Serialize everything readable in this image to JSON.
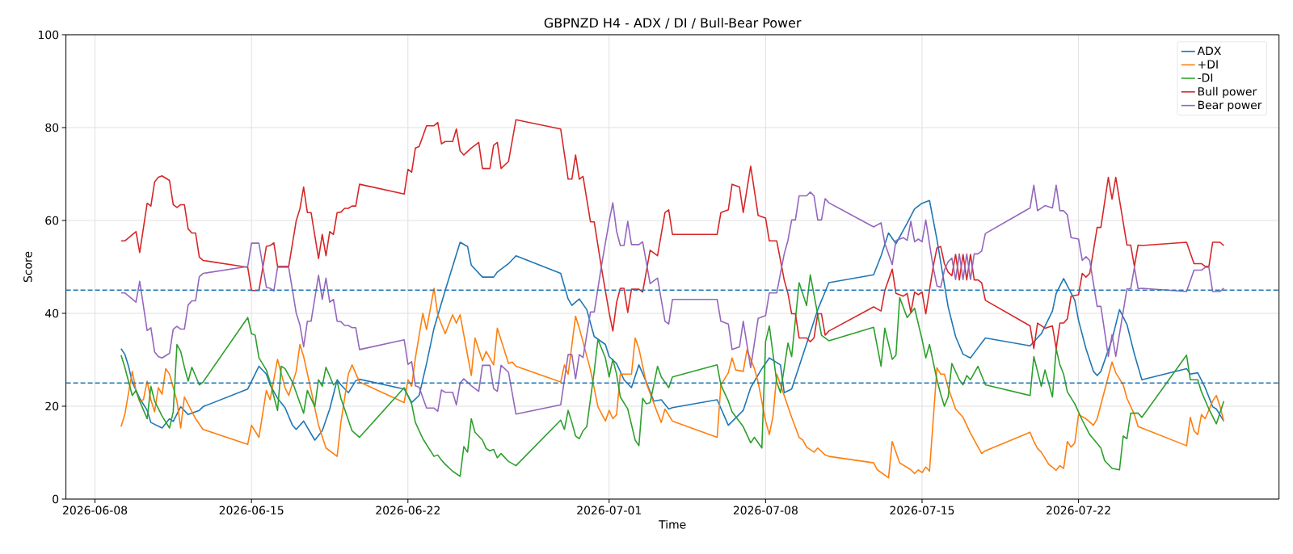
{
  "chart_data": {
    "type": "line",
    "title": "GBPNZD H4 - ADX / DI / Bull-Bear Power",
    "xlabel": "Time",
    "ylabel": "Score",
    "xlim": [
      "2026-06-06T16:48",
      "2026-07-30T23:17"
    ],
    "xticks": [
      "2026-06-08",
      "2026-06-15",
      "2026-06-22",
      "2026-07-01",
      "2026-07-08",
      "2026-07-15",
      "2026-07-22"
    ],
    "ylim": [
      0,
      100
    ],
    "yticks": [
      0,
      20,
      40,
      60,
      80,
      100
    ],
    "grid": true,
    "legend": "top right",
    "ref_lines": [
      {
        "axis": "y",
        "value": 45,
        "color": "#1f77b4",
        "line_style": "dashed"
      },
      {
        "axis": "y",
        "value": 25,
        "color": "#1f77b4",
        "line_style": "dashed"
      }
    ],
    "x": [
      "2026-06-09T04:00",
      "2026-06-09T08:00",
      "2026-06-09T20:00",
      "2026-06-10T00:00",
      "2026-06-10T08:00",
      "2026-06-10T12:00",
      "2026-06-10T16:00",
      "2026-06-10T20:00",
      "2026-06-11T00:00",
      "2026-06-11T08:00",
      "2026-06-11T12:00",
      "2026-06-11T16:00",
      "2026-06-11T20:00",
      "2026-06-12T00:00",
      "2026-06-12T04:00",
      "2026-06-12T08:00",
      "2026-06-12T12:00",
      "2026-06-12T16:00",
      "2026-06-12T20:00",
      "2026-06-14T20:00",
      "2026-06-15T00:00",
      "2026-06-15T08:00",
      "2026-06-15T16:00",
      "2026-06-15T20:00",
      "2026-06-16T00:00",
      "2026-06-16T04:00",
      "2026-06-16T16:00",
      "2026-06-17T00:00",
      "2026-06-17T04:00",
      "2026-06-17T08:00",
      "2026-06-17T12:00",
      "2026-06-17T16:00",
      "2026-06-18T00:00",
      "2026-06-18T04:00",
      "2026-06-18T08:00",
      "2026-06-18T12:00",
      "2026-06-18T16:00",
      "2026-06-18T20:00",
      "2026-06-19T00:00",
      "2026-06-19T04:00",
      "2026-06-19T08:00",
      "2026-06-19T12:00",
      "2026-06-19T16:00",
      "2026-06-19T20:00",
      "2026-06-21T20:00",
      "2026-06-22T00:00",
      "2026-06-22T04:00",
      "2026-06-22T08:00",
      "2026-06-22T12:00",
      "2026-06-22T20:00",
      "2026-06-23T04:00",
      "2026-06-23T08:00",
      "2026-06-23T12:00",
      "2026-06-23T16:00",
      "2026-06-24T00:00",
      "2026-06-24T04:00",
      "2026-06-24T08:00",
      "2026-06-24T12:00",
      "2026-06-24T20:00",
      "2026-06-25T04:00",
      "2026-06-25T08:00",
      "2026-06-25T16:00",
      "2026-06-25T20:00",
      "2026-06-26T00:00",
      "2026-06-26T04:00",
      "2026-06-26T12:00",
      "2026-06-26T20:00",
      "2026-06-28T20:00",
      "2026-06-29T04:00",
      "2026-06-29T08:00",
      "2026-06-29T12:00",
      "2026-06-29T16:00",
      "2026-06-29T20:00",
      "2026-06-30T04:00",
      "2026-06-30T08:00",
      "2026-06-30T16:00",
      "2026-07-01T00:00",
      "2026-07-01T04:00",
      "2026-07-01T08:00",
      "2026-07-01T12:00",
      "2026-07-01T16:00",
      "2026-07-01T20:00",
      "2026-07-02T00:00",
      "2026-07-02T08:00",
      "2026-07-02T12:00",
      "2026-07-02T20:00",
      "2026-07-03T04:00",
      "2026-07-03T12:00",
      "2026-07-03T16:00",
      "2026-07-03T20:00",
      "2026-07-05T20:00",
      "2026-07-06T00:00",
      "2026-07-06T08:00",
      "2026-07-06T12:00",
      "2026-07-06T20:00",
      "2026-07-07T00:00",
      "2026-07-07T08:00",
      "2026-07-07T16:00",
      "2026-07-08T00:00",
      "2026-07-08T04:00",
      "2026-07-08T12:00",
      "2026-07-08T20:00",
      "2026-07-09T00:00",
      "2026-07-09T04:00",
      "2026-07-09T08:00",
      "2026-07-09T12:00",
      "2026-07-09T20:00",
      "2026-07-10T00:00",
      "2026-07-10T04:00",
      "2026-07-10T08:00",
      "2026-07-10T12:00",
      "2026-07-10T16:00",
      "2026-07-10T20:00",
      "2026-07-12T20:00",
      "2026-07-13T04:00",
      "2026-07-13T08:00",
      "2026-07-13T16:00",
      "2026-07-13T20:00",
      "2026-07-14T04:00",
      "2026-07-14T08:00",
      "2026-07-14T12:00",
      "2026-07-14T16:00",
      "2026-07-14T20:00",
      "2026-07-15T00:00",
      "2026-07-15T04:00",
      "2026-07-15T12:00",
      "2026-07-15T16:00",
      "2026-07-15T20:00",
      "2026-07-16T00:00",
      "2026-07-16T04:00",
      "2026-07-16T08:00",
      "2026-07-16T12:00",
      "2026-07-16T16:00",
      "2026-07-16T20:00",
      "2026-07-17T00:00",
      "2026-07-17T04:00",
      "2026-07-17T08:00",
      "2026-07-17T12:00",
      "2026-07-17T16:00",
      "2026-07-17T20:00",
      "2026-07-19T20:00",
      "2026-07-20T00:00",
      "2026-07-20T04:00",
      "2026-07-20T12:00",
      "2026-07-20T20:00",
      "2026-07-21T00:00",
      "2026-07-21T04:00",
      "2026-07-21T08:00",
      "2026-07-21T12:00",
      "2026-07-21T16:00",
      "2026-07-22T00:00",
      "2026-07-22T04:00",
      "2026-07-22T08:00",
      "2026-07-22T12:00",
      "2026-07-22T20:00",
      "2026-07-23T00:00",
      "2026-07-23T08:00",
      "2026-07-23T12:00",
      "2026-07-23T16:00",
      "2026-07-24T04:00",
      "2026-07-24T08:00",
      "2026-07-24T12:00",
      "2026-07-24T16:00",
      "2026-07-24T20:00",
      "2026-07-26T20:00",
      "2026-07-27T04:00",
      "2026-07-27T12:00",
      "2026-07-27T16:00",
      "2026-07-27T20:00",
      "2026-07-28T00:00",
      "2026-07-28T08:00",
      "2026-07-28T12:00"
    ],
    "series": [
      {
        "name": "ADX",
        "color": "#1f77b4",
        "x": [
          "2026-06-09T04:00",
          "2026-06-09T08:00",
          "2026-06-09T12:00",
          "2026-06-09T16:00",
          "2026-06-10T00:00",
          "2026-06-10T08:00",
          "2026-06-10T12:00",
          "2026-06-11T00:00",
          "2026-06-11T08:00",
          "2026-06-11T12:00",
          "2026-06-11T20:00",
          "2026-06-12T04:00",
          "2026-06-12T16:00",
          "2026-06-12T20:00",
          "2026-06-14T20:00",
          "2026-06-15T08:00",
          "2026-06-15T16:00",
          "2026-06-15T20:00",
          "2026-06-16T04:00",
          "2026-06-16T12:00",
          "2026-06-16T20:00",
          "2026-06-17T00:00",
          "2026-06-17T08:00",
          "2026-06-17T20:00",
          "2026-06-18T04:00",
          "2026-06-18T12:00",
          "2026-06-18T20:00",
          "2026-06-19T00:00",
          "2026-06-19T08:00",
          "2026-06-19T16:00",
          "2026-06-19T20:00",
          "2026-06-21T20:00",
          "2026-06-22T04:00",
          "2026-06-22T12:00",
          "2026-06-22T20:00",
          "2026-06-23T04:00",
          "2026-06-23T16:00",
          "2026-06-24T08:00",
          "2026-06-24T16:00",
          "2026-06-24T20:00",
          "2026-06-25T08:00",
          "2026-06-25T20:00",
          "2026-06-26T00:00",
          "2026-06-26T12:00",
          "2026-06-26T20:00",
          "2026-06-28T20:00",
          "2026-06-29T04:00",
          "2026-06-29T08:00",
          "2026-06-29T16:00",
          "2026-06-30T00:00",
          "2026-06-30T08:00",
          "2026-06-30T20:00",
          "2026-07-01T00:00",
          "2026-07-01T08:00",
          "2026-07-01T16:00",
          "2026-07-02T00:00",
          "2026-07-02T08:00",
          "2026-07-02T16:00",
          "2026-07-03T00:00",
          "2026-07-03T08:00",
          "2026-07-03T16:00",
          "2026-07-03T20:00",
          "2026-07-05T20:00",
          "2026-07-06T08:00",
          "2026-07-07T00:00",
          "2026-07-07T08:00",
          "2026-07-07T20:00",
          "2026-07-08T04:00",
          "2026-07-08T16:00",
          "2026-07-08T20:00",
          "2026-07-09T04:00",
          "2026-07-09T16:00",
          "2026-07-10T08:00",
          "2026-07-10T20:00",
          "2026-07-12T20:00",
          "2026-07-13T04:00",
          "2026-07-13T12:00",
          "2026-07-13T20:00",
          "2026-07-14T08:00",
          "2026-07-14T16:00",
          "2026-07-15T00:00",
          "2026-07-15T08:00",
          "2026-07-15T16:00",
          "2026-07-16T04:00",
          "2026-07-16T12:00",
          "2026-07-16T20:00",
          "2026-07-17T04:00",
          "2026-07-17T08:00",
          "2026-07-17T20:00",
          "2026-07-19T20:00",
          "2026-07-20T08:00",
          "2026-07-20T20:00",
          "2026-07-21T00:00",
          "2026-07-21T08:00",
          "2026-07-21T20:00",
          "2026-07-22T00:00",
          "2026-07-22T08:00",
          "2026-07-22T16:00",
          "2026-07-22T20:00",
          "2026-07-23T00:00",
          "2026-07-23T12:00",
          "2026-07-23T20:00",
          "2026-07-24T04:00",
          "2026-07-24T12:00",
          "2026-07-24T20:00",
          "2026-07-26T20:00",
          "2026-07-27T00:00",
          "2026-07-27T08:00",
          "2026-07-27T16:00",
          "2026-07-28T00:00",
          "2026-07-28T04:00",
          "2026-07-28T12:00"
        ],
        "values": [
          32.4,
          31.2,
          28.6,
          25.2,
          21.7,
          19.1,
          16.5,
          15.3,
          17.3,
          16.7,
          19.9,
          18.2,
          19.1,
          19.9,
          23.7,
          28.6,
          26.9,
          24.6,
          21.7,
          19.7,
          15.9,
          15.0,
          16.8,
          12.7,
          14.7,
          19.4,
          25.7,
          24.6,
          22.9,
          25.5,
          25.8,
          23.7,
          20.8,
          22.3,
          29.2,
          36.8,
          44.9,
          55.3,
          54.4,
          50.4,
          47.8,
          47.8,
          48.9,
          50.7,
          52.4,
          48.6,
          43.1,
          41.7,
          43.1,
          40.8,
          35.0,
          33.3,
          30.7,
          29.2,
          25.7,
          24.0,
          28.9,
          25.2,
          21.1,
          21.4,
          19.4,
          19.7,
          21.4,
          15.9,
          19.1,
          24.0,
          28.1,
          30.4,
          28.9,
          22.9,
          23.7,
          31.0,
          40.8,
          46.6,
          48.3,
          52.4,
          57.3,
          55.0,
          59.4,
          62.5,
          63.7,
          64.3,
          55.9,
          41.4,
          35.0,
          31.2,
          30.4,
          31.5,
          34.7,
          33.0,
          35.6,
          40.5,
          44.3,
          47.5,
          42.8,
          38.5,
          32.4,
          27.5,
          26.6,
          27.5,
          34.4,
          40.8,
          37.6,
          31.2,
          25.7,
          28.1,
          26.9,
          27.2,
          24.0,
          19.9,
          19.4,
          16.8
        ]
      },
      {
        "name": "+DI",
        "color": "#ff7f0e",
        "x": [
          "2026-06-09T04:00",
          "2026-06-09T08:00",
          "2026-06-09T16:00",
          "2026-06-09T20:00",
          "2026-06-10T00:00",
          "2026-06-10T04:00",
          "2026-06-10T08:00",
          "2026-06-10T12:00",
          "2026-06-10T16:00",
          "2026-06-10T20:00",
          "2026-06-11T00:00",
          "2026-06-11T04:00",
          "2026-06-11T08:00",
          "2026-06-11T16:00",
          "2026-06-11T20:00",
          "2026-06-12T00:00",
          "2026-06-12T12:00",
          "2026-06-12T20:00",
          "2026-06-14T20:00",
          "2026-06-15T00:00",
          "2026-06-15T08:00",
          "2026-06-15T16:00",
          "2026-06-15T20:00",
          "2026-06-16T04:00",
          "2026-06-16T12:00",
          "2026-06-16T16:00",
          "2026-06-17T00:00",
          "2026-06-17T04:00",
          "2026-06-17T08:00",
          "2026-06-17T16:00",
          "2026-06-18T00:00",
          "2026-06-18T08:00",
          "2026-06-18T20:00",
          "2026-06-19T00:00",
          "2026-06-19T08:00",
          "2026-06-19T12:00",
          "2026-06-19T20:00",
          "2026-06-21T20:00",
          "2026-06-22T00:00",
          "2026-06-22T04:00",
          "2026-06-22T08:00",
          "2026-06-22T16:00",
          "2026-06-22T20:00",
          "2026-06-23T04:00",
          "2026-06-23T08:00",
          "2026-06-23T16:00",
          "2026-06-24T00:00",
          "2026-06-24T04:00",
          "2026-06-24T08:00",
          "2026-06-24T16:00",
          "2026-06-24T20:00",
          "2026-06-25T00:00",
          "2026-06-25T08:00",
          "2026-06-25T12:00",
          "2026-06-25T20:00",
          "2026-06-26T00:00",
          "2026-06-26T12:00",
          "2026-06-26T16:00",
          "2026-06-26T20:00",
          "2026-06-28T20:00",
          "2026-06-29T00:00",
          "2026-06-29T04:00",
          "2026-06-29T12:00",
          "2026-06-29T16:00",
          "2026-06-30T04:00",
          "2026-06-30T12:00",
          "2026-06-30T20:00",
          "2026-07-01T00:00",
          "2026-07-01T04:00",
          "2026-07-01T08:00",
          "2026-07-01T12:00",
          "2026-07-02T00:00",
          "2026-07-02T04:00",
          "2026-07-02T08:00",
          "2026-07-02T16:00",
          "2026-07-03T04:00",
          "2026-07-03T08:00",
          "2026-07-03T12:00",
          "2026-07-03T20:00",
          "2026-07-05T20:00",
          "2026-07-06T00:00",
          "2026-07-06T08:00",
          "2026-07-06T12:00",
          "2026-07-06T16:00",
          "2026-07-07T00:00",
          "2026-07-07T04:00",
          "2026-07-07T12:00",
          "2026-07-07T16:00",
          "2026-07-08T00:00",
          "2026-07-08T04:00",
          "2026-07-08T08:00",
          "2026-07-08T12:00",
          "2026-07-08T20:00",
          "2026-07-09T04:00",
          "2026-07-09T12:00",
          "2026-07-09T16:00",
          "2026-07-09T20:00",
          "2026-07-10T04:00",
          "2026-07-10T08:00",
          "2026-07-10T16:00",
          "2026-07-10T20:00",
          "2026-07-12T20:00",
          "2026-07-13T00:00",
          "2026-07-13T12:00",
          "2026-07-13T16:00",
          "2026-07-14T00:00",
          "2026-07-14T12:00",
          "2026-07-14T16:00",
          "2026-07-14T20:00",
          "2026-07-15T00:00",
          "2026-07-15T04:00",
          "2026-07-15T08:00",
          "2026-07-15T16:00",
          "2026-07-15T20:00",
          "2026-07-16T00:00",
          "2026-07-16T04:00",
          "2026-07-16T12:00",
          "2026-07-16T20:00",
          "2026-07-17T04:00",
          "2026-07-17T16:00",
          "2026-07-17T20:00",
          "2026-07-19T20:00",
          "2026-07-20T00:00",
          "2026-07-20T04:00",
          "2026-07-20T08:00",
          "2026-07-20T16:00",
          "2026-07-21T00:00",
          "2026-07-21T04:00",
          "2026-07-21T08:00",
          "2026-07-21T12:00",
          "2026-07-21T16:00",
          "2026-07-21T20:00",
          "2026-07-22T00:00",
          "2026-07-22T08:00",
          "2026-07-22T16:00",
          "2026-07-22T20:00",
          "2026-07-23T04:00",
          "2026-07-23T12:00",
          "2026-07-23T16:00",
          "2026-07-24T00:00",
          "2026-07-24T04:00",
          "2026-07-24T12:00",
          "2026-07-24T16:00",
          "2026-07-24T20:00",
          "2026-07-26T20:00",
          "2026-07-27T00:00",
          "2026-07-27T04:00",
          "2026-07-27T08:00",
          "2026-07-27T12:00",
          "2026-07-27T16:00",
          "2026-07-28T00:00",
          "2026-07-28T04:00",
          "2026-07-28T08:00",
          "2026-07-28T12:00"
        ],
        "values": [
          15.6,
          18.2,
          27.5,
          23.4,
          21.1,
          21.4,
          25.4,
          21.4,
          18.8,
          24.0,
          22.6,
          28.1,
          26.9,
          21.1,
          15.3,
          22.0,
          17.3,
          15.0,
          11.8,
          15.9,
          13.3,
          23.4,
          21.4,
          30.1,
          24.0,
          22.3,
          27.5,
          33.3,
          30.7,
          23.4,
          15.9,
          11.0,
          9.2,
          16.5,
          26.9,
          28.9,
          25.2,
          20.8,
          25.7,
          24.3,
          30.4,
          40.0,
          36.5,
          45.4,
          39.7,
          35.6,
          39.7,
          37.9,
          39.7,
          31.0,
          26.6,
          34.7,
          29.8,
          31.8,
          28.9,
          36.8,
          29.2,
          29.5,
          28.6,
          25.2,
          28.9,
          26.9,
          39.4,
          36.8,
          27.8,
          19.9,
          16.8,
          19.1,
          17.3,
          18.2,
          26.9,
          26.9,
          34.7,
          32.4,
          24.9,
          18.5,
          16.5,
          19.4,
          16.8,
          13.3,
          24.6,
          27.2,
          30.4,
          27.8,
          27.5,
          32.1,
          28.1,
          25.2,
          16.8,
          13.9,
          17.9,
          26.9,
          22.3,
          17.6,
          13.3,
          12.7,
          11.2,
          10.1,
          11.0,
          9.5,
          9.2,
          7.8,
          6.3,
          4.6,
          12.4,
          7.8,
          6.3,
          5.5,
          6.3,
          5.7,
          6.9,
          6.0,
          28.3,
          26.9,
          26.9,
          24.0,
          19.4,
          17.6,
          14.2,
          9.8,
          10.4,
          14.4,
          12.4,
          10.9,
          10.1,
          7.5,
          6.2,
          7.2,
          6.6,
          12.4,
          11.2,
          12.1,
          18.2,
          17.3,
          15.9,
          17.3,
          23.4,
          29.5,
          27.2,
          24.6,
          21.7,
          18.2,
          15.6,
          15.3,
          11.5,
          17.6,
          14.7,
          13.9,
          18.2,
          17.3,
          21.1,
          22.3,
          19.9,
          16.8
        ]
      },
      {
        "name": "-DI",
        "color": "#2ca02c",
        "x": [
          "2026-06-09T04:00",
          "2026-06-09T08:00",
          "2026-06-09T16:00",
          "2026-06-09T20:00",
          "2026-06-10T00:00",
          "2026-06-10T08:00",
          "2026-06-10T12:00",
          "2026-06-10T16:00",
          "2026-06-11T00:00",
          "2026-06-11T08:00",
          "2026-06-11T12:00",
          "2026-06-11T16:00",
          "2026-06-11T20:00",
          "2026-06-12T00:00",
          "2026-06-12T04:00",
          "2026-06-12T08:00",
          "2026-06-12T16:00",
          "2026-06-12T20:00",
          "2026-06-14T20:00",
          "2026-06-15T00:00",
          "2026-06-15T04:00",
          "2026-06-15T08:00",
          "2026-06-15T16:00",
          "2026-06-15T20:00",
          "2026-06-16T04:00",
          "2026-06-16T08:00",
          "2026-06-16T12:00",
          "2026-06-16T20:00",
          "2026-06-17T08:00",
          "2026-06-17T12:00",
          "2026-06-17T20:00",
          "2026-06-18T00:00",
          "2026-06-18T04:00",
          "2026-06-18T08:00",
          "2026-06-18T16:00",
          "2026-06-18T20:00",
          "2026-06-19T00:00",
          "2026-06-19T12:00",
          "2026-06-19T20:00",
          "2026-06-21T20:00",
          "2026-06-22T04:00",
          "2026-06-22T08:00",
          "2026-06-22T16:00",
          "2026-06-23T04:00",
          "2026-06-23T08:00",
          "2026-06-23T12:00",
          "2026-06-23T16:00",
          "2026-06-24T00:00",
          "2026-06-24T08:00",
          "2026-06-24T12:00",
          "2026-06-24T16:00",
          "2026-06-24T20:00",
          "2026-06-25T00:00",
          "2026-06-25T08:00",
          "2026-06-25T12:00",
          "2026-06-25T16:00",
          "2026-06-25T20:00",
          "2026-06-26T00:00",
          "2026-06-26T04:00",
          "2026-06-26T12:00",
          "2026-06-26T20:00",
          "2026-06-28T20:00",
          "2026-06-29T00:00",
          "2026-06-29T04:00",
          "2026-06-29T08:00",
          "2026-06-29T12:00",
          "2026-06-29T16:00",
          "2026-06-29T20:00",
          "2026-06-30T00:00",
          "2026-06-30T08:00",
          "2026-06-30T12:00",
          "2026-06-30T20:00",
          "2026-07-01T00:00",
          "2026-07-01T04:00",
          "2026-07-01T08:00",
          "2026-07-01T12:00",
          "2026-07-01T20:00",
          "2026-07-02T04:00",
          "2026-07-02T08:00",
          "2026-07-02T12:00",
          "2026-07-02T16:00",
          "2026-07-02T20:00",
          "2026-07-03T04:00",
          "2026-07-03T08:00",
          "2026-07-03T16:00",
          "2026-07-03T20:00",
          "2026-07-05T20:00",
          "2026-07-06T00:00",
          "2026-07-06T08:00",
          "2026-07-06T12:00",
          "2026-07-07T00:00",
          "2026-07-07T08:00",
          "2026-07-07T12:00",
          "2026-07-07T20:00",
          "2026-07-08T00:00",
          "2026-07-08T04:00",
          "2026-07-08T12:00",
          "2026-07-08T16:00",
          "2026-07-09T00:00",
          "2026-07-09T04:00",
          "2026-07-09T12:00",
          "2026-07-09T20:00",
          "2026-07-10T00:00",
          "2026-07-10T08:00",
          "2026-07-10T12:00",
          "2026-07-10T20:00",
          "2026-07-12T20:00",
          "2026-07-13T04:00",
          "2026-07-13T08:00",
          "2026-07-13T16:00",
          "2026-07-13T20:00",
          "2026-07-14T00:00",
          "2026-07-14T08:00",
          "2026-07-14T16:00",
          "2026-07-15T00:00",
          "2026-07-15T04:00",
          "2026-07-15T08:00",
          "2026-07-15T16:00",
          "2026-07-15T20:00",
          "2026-07-16T00:00",
          "2026-07-16T04:00",
          "2026-07-16T08:00",
          "2026-07-16T16:00",
          "2026-07-16T20:00",
          "2026-07-17T00:00",
          "2026-07-17T04:00",
          "2026-07-17T12:00",
          "2026-07-17T20:00",
          "2026-07-19T20:00",
          "2026-07-20T00:00",
          "2026-07-20T08:00",
          "2026-07-20T12:00",
          "2026-07-20T20:00",
          "2026-07-21T00:00",
          "2026-07-21T04:00",
          "2026-07-21T08:00",
          "2026-07-21T12:00",
          "2026-07-21T20:00",
          "2026-07-22T04:00",
          "2026-07-22T12:00",
          "2026-07-23T00:00",
          "2026-07-23T04:00",
          "2026-07-23T12:00",
          "2026-07-23T20:00",
          "2026-07-24T00:00",
          "2026-07-24T04:00",
          "2026-07-24T08:00",
          "2026-07-24T16:00",
          "2026-07-24T20:00",
          "2026-07-26T20:00",
          "2026-07-27T00:00",
          "2026-07-27T08:00",
          "2026-07-27T12:00",
          "2026-07-27T20:00",
          "2026-07-28T04:00",
          "2026-07-28T12:00"
        ],
        "values": [
          31.0,
          28.4,
          22.3,
          23.4,
          21.1,
          17.3,
          24.3,
          21.1,
          17.9,
          15.3,
          18.8,
          33.3,
          31.8,
          28.4,
          25.4,
          28.4,
          24.6,
          25.2,
          39.1,
          35.6,
          35.3,
          30.4,
          27.8,
          25.2,
          19.1,
          28.6,
          28.1,
          25.2,
          18.5,
          23.4,
          19.9,
          25.7,
          24.3,
          28.4,
          24.6,
          25.4,
          21.7,
          14.7,
          13.3,
          24.0,
          20.5,
          16.5,
          13.0,
          9.2,
          9.5,
          8.4,
          7.5,
          6.0,
          4.9,
          11.3,
          10.1,
          17.3,
          14.4,
          12.7,
          10.9,
          10.4,
          10.7,
          8.9,
          9.8,
          8.1,
          7.2,
          17.0,
          15.0,
          19.1,
          16.5,
          13.6,
          13.0,
          14.7,
          15.6,
          27.5,
          34.4,
          30.4,
          26.3,
          30.1,
          26.9,
          22.0,
          19.4,
          12.7,
          11.5,
          21.7,
          20.5,
          20.8,
          28.6,
          26.3,
          24.0,
          26.3,
          28.9,
          24.6,
          21.1,
          18.8,
          15.6,
          12.1,
          13.3,
          11.0,
          33.9,
          37.3,
          25.2,
          22.9,
          33.6,
          30.7,
          46.6,
          41.7,
          48.3,
          39.7,
          35.3,
          34.1,
          37.0,
          28.6,
          36.8,
          30.1,
          31.0,
          43.4,
          39.1,
          41.1,
          34.4,
          30.4,
          33.3,
          25.7,
          22.6,
          20.0,
          22.0,
          29.2,
          25.7,
          24.6,
          26.6,
          25.7,
          28.6,
          24.6,
          22.3,
          30.7,
          24.3,
          27.8,
          22.0,
          32.4,
          28.9,
          26.9,
          23.1,
          20.5,
          17.0,
          13.9,
          11.0,
          8.3,
          6.6,
          6.3,
          13.6,
          13.0,
          18.5,
          18.5,
          17.6,
          31.0,
          25.7,
          25.7,
          23.1,
          19.4,
          16.2,
          21.1
        ]
      },
      {
        "name": "Bull power",
        "color": "#d62728",
        "values": [
          55.6,
          55.6,
          57.6,
          53.1,
          63.7,
          63.1,
          68.3,
          69.3,
          69.6,
          68.6,
          63.4,
          62.8,
          63.4,
          63.4,
          58.2,
          57.3,
          57.3,
          52.1,
          51.4,
          49.9,
          44.9,
          44.9,
          54.4,
          54.6,
          55.2,
          50.1,
          50.1,
          59.9,
          62.5,
          67.2,
          61.7,
          61.7,
          51.8,
          57.0,
          52.4,
          57.6,
          57.0,
          61.7,
          61.8,
          62.6,
          62.6,
          63.1,
          63.1,
          67.8,
          65.7,
          71.0,
          70.4,
          75.6,
          75.9,
          80.4,
          80.4,
          81.1,
          76.5,
          77.0,
          77.0,
          79.7,
          75.0,
          74.1,
          75.6,
          76.8,
          71.2,
          71.2,
          76.2,
          76.8,
          71.2,
          72.7,
          81.7,
          79.7,
          68.9,
          68.9,
          74.1,
          68.9,
          69.5,
          59.7,
          59.7,
          49.5,
          40.2,
          36.2,
          42.3,
          45.4,
          45.4,
          40.2,
          45.2,
          45.2,
          44.6,
          53.6,
          52.4,
          61.7,
          62.3,
          57.0,
          57.0,
          61.7,
          62.3,
          67.8,
          67.2,
          61.7,
          71.7,
          61.1,
          60.5,
          55.6,
          55.6,
          47.2,
          44.3,
          39.9,
          39.9,
          34.7,
          34.7,
          33.9,
          34.7,
          39.9,
          39.9,
          35.3,
          36.2,
          41.4,
          40.5,
          44.9,
          49.5,
          44.3,
          43.7,
          44.3,
          40.2,
          44.6,
          44.0,
          44.6,
          39.9,
          50.1,
          54.1,
          54.4,
          50.7,
          48.9,
          48.1,
          52.7,
          47.2,
          52.7,
          47.2,
          52.7,
          47.2,
          47.2,
          46.6,
          42.8,
          37.3,
          32.4,
          37.9,
          36.8,
          37.3,
          32.4,
          37.9,
          37.9,
          38.8,
          43.7,
          44.0,
          48.6,
          47.8,
          48.6,
          58.5,
          58.5,
          69.3,
          64.6,
          69.3,
          54.7,
          54.7,
          50.1,
          54.7,
          54.6,
          55.3,
          50.7,
          50.7,
          50.1,
          50.1,
          55.3,
          55.3,
          54.6
        ]
      },
      {
        "name": "Bear power",
        "color": "#9467bd",
        "values": [
          44.4,
          44.4,
          42.4,
          46.9,
          36.3,
          36.9,
          31.7,
          30.7,
          30.4,
          31.4,
          36.6,
          37.2,
          36.6,
          36.6,
          41.8,
          42.7,
          42.7,
          47.9,
          48.6,
          50.1,
          55.1,
          55.1,
          45.6,
          45.4,
          44.8,
          49.9,
          49.9,
          40.1,
          37.5,
          32.8,
          38.3,
          38.3,
          48.2,
          43.0,
          47.6,
          42.4,
          43.0,
          38.3,
          38.2,
          37.4,
          37.4,
          36.9,
          36.9,
          32.2,
          34.3,
          29.0,
          29.6,
          24.4,
          24.1,
          19.6,
          19.6,
          18.9,
          23.5,
          23.0,
          23.0,
          20.3,
          25.0,
          25.9,
          24.4,
          23.2,
          28.8,
          28.8,
          23.8,
          23.2,
          28.8,
          27.3,
          18.3,
          20.3,
          31.1,
          31.1,
          25.9,
          31.1,
          30.5,
          40.3,
          40.3,
          50.5,
          59.8,
          63.8,
          57.7,
          54.6,
          54.6,
          59.8,
          54.8,
          54.8,
          55.4,
          46.4,
          47.6,
          38.3,
          37.7,
          43.0,
          43.0,
          38.3,
          37.7,
          32.2,
          32.8,
          38.3,
          28.3,
          38.9,
          39.5,
          44.4,
          44.4,
          52.8,
          55.7,
          60.1,
          60.1,
          65.3,
          65.3,
          66.1,
          65.3,
          60.1,
          60.1,
          64.7,
          63.8,
          58.6,
          59.5,
          55.1,
          50.5,
          55.7,
          56.3,
          55.7,
          59.8,
          55.4,
          56.0,
          55.4,
          60.1,
          49.9,
          45.9,
          45.6,
          49.3,
          51.1,
          51.9,
          47.3,
          52.8,
          47.3,
          52.8,
          47.3,
          52.8,
          52.8,
          53.4,
          57.2,
          62.7,
          67.6,
          62.1,
          63.2,
          62.7,
          67.6,
          62.1,
          62.1,
          61.2,
          56.3,
          56.0,
          51.4,
          52.2,
          51.4,
          41.5,
          41.5,
          30.7,
          35.4,
          30.7,
          45.3,
          45.3,
          49.9,
          45.3,
          45.4,
          44.7,
          49.3,
          49.3,
          49.9,
          49.9,
          44.7,
          44.7,
          45.4
        ]
      }
    ]
  }
}
